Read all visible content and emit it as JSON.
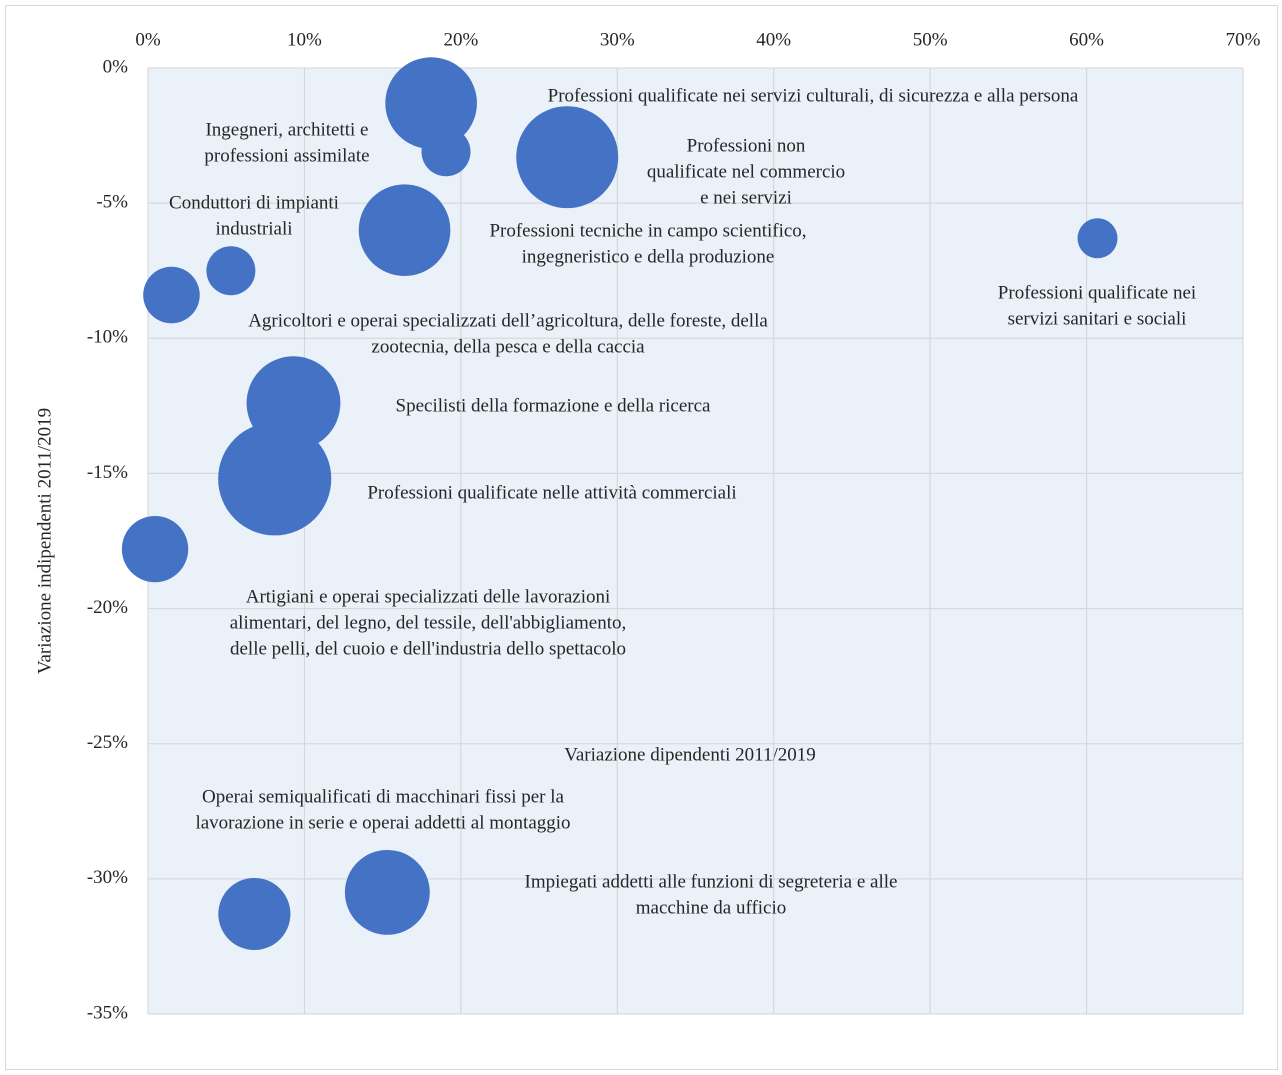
{
  "chart_data": {
    "type": "bubble",
    "x_label": "Variazione dipendenti 2011/2019",
    "y_label": "Variazione indipendenti 2011/2019",
    "color": "#4472c4",
    "grid": true,
    "xlim": [
      0,
      70
    ],
    "xticks": [
      {
        "value": 0,
        "label": "0%"
      },
      {
        "value": 10,
        "label": "10%"
      },
      {
        "value": 20,
        "label": "20%"
      },
      {
        "value": 30,
        "label": "30%"
      },
      {
        "value": 40,
        "label": "40%"
      },
      {
        "value": 50,
        "label": "50%"
      },
      {
        "value": 60,
        "label": "60%"
      },
      {
        "value": 70,
        "label": "70%"
      }
    ],
    "ylim": [
      -35,
      0
    ],
    "yticks": [
      {
        "value": 0,
        "label": "0%"
      },
      {
        "value": -5,
        "label": "-5%"
      },
      {
        "value": -10,
        "label": "-10%"
      },
      {
        "value": -15,
        "label": "-15%"
      },
      {
        "value": -20,
        "label": "-20%"
      },
      {
        "value": -25,
        "label": "-25%"
      },
      {
        "value": -30,
        "label": "-30%"
      },
      {
        "value": -35,
        "label": "-35%"
      }
    ],
    "x": [
      18.1,
      19.05,
      26.8,
      16.4,
      60.7,
      5.3,
      1.5,
      9.3,
      8.1,
      0.45,
      6.8,
      15.3
    ],
    "values": [
      -1.3,
      -3.1,
      -3.3,
      -6.0,
      -6.3,
      -7.5,
      -8.4,
      -12.4,
      -15.2,
      -17.8,
      -31.3,
      -30.5
    ],
    "sizes": [
      21,
      6,
      26,
      21,
      4,
      6,
      8,
      22,
      32,
      11,
      13,
      18
    ],
    "labels": [
      [
        "Professioni qualificate nei servizi culturali, di sicurezza e alla persona"
      ],
      [
        "Ingegneri, architetti e",
        "professioni assimilate"
      ],
      [
        "Professioni non",
        "qualificate nel commercio",
        "e nei servizi"
      ],
      [
        "Professioni tecniche in campo scientifico,",
        "ingegneristico e della produzione"
      ],
      [
        "Professioni qualificate nei",
        "servizi sanitari e sociali"
      ],
      [
        "Conduttori di impianti",
        "industriali"
      ],
      [
        "Agricoltori e operai specializzati dell’agricoltura, delle foreste, della",
        "zootecnia, della pesca e della caccia"
      ],
      [
        "Specilisti della formazione e della ricerca"
      ],
      [
        "Professioni qualificate nelle attività commerciali"
      ],
      [
        "Artigiani e operai specializzati delle lavorazioni",
        "alimentari, del legno, del tessile, dell'abbigliamento,",
        "delle pelli, del cuoio e dell'industria dello spettacolo"
      ],
      [
        "Operai semiqualificati di macchinari fissi per la",
        "lavorazione in serie e operai addetti al montaggio"
      ],
      [
        "Impiegati addetti alle funzioni di segreteria e alle",
        "macchine da ufficio"
      ]
    ]
  }
}
